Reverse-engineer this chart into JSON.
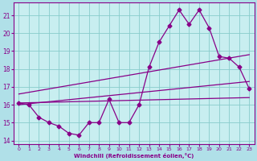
{
  "xlabel": "Windchill (Refroidissement éolien,°C)",
  "bg_color": "#b0e0e8",
  "plot_bg_color": "#c8eef0",
  "grid_color": "#88cccc",
  "line_color": "#880088",
  "xlim": [
    -0.5,
    23.5
  ],
  "ylim": [
    13.8,
    21.7
  ],
  "yticks": [
    14,
    15,
    16,
    17,
    18,
    19,
    20,
    21
  ],
  "xticks": [
    0,
    1,
    2,
    3,
    4,
    5,
    6,
    7,
    8,
    9,
    10,
    11,
    12,
    13,
    14,
    15,
    16,
    17,
    18,
    19,
    20,
    21,
    22,
    23
  ],
  "curve1_x": [
    0,
    1,
    2,
    3,
    4,
    5,
    6,
    7,
    8,
    9,
    10,
    11,
    12,
    13,
    14,
    15,
    16,
    17,
    18,
    19,
    20,
    21,
    22,
    23
  ],
  "curve1_y": [
    16.1,
    16.0,
    15.3,
    15.0,
    14.8,
    14.4,
    14.3,
    15.0,
    15.0,
    16.3,
    15.0,
    15.0,
    16.0,
    18.1,
    19.5,
    20.4,
    21.3,
    20.5,
    21.3,
    20.3,
    18.7,
    18.6,
    18.1,
    16.9
  ],
  "curve2_x": [
    0,
    23
  ],
  "curve2_y": [
    16.1,
    16.4
  ],
  "curve3_x": [
    0,
    23
  ],
  "curve3_y": [
    16.6,
    18.8
  ],
  "curve4_x": [
    0,
    23
  ],
  "curve4_y": [
    16.0,
    17.3
  ],
  "marker": "D",
  "markersize": 2.5,
  "linewidth": 0.9
}
